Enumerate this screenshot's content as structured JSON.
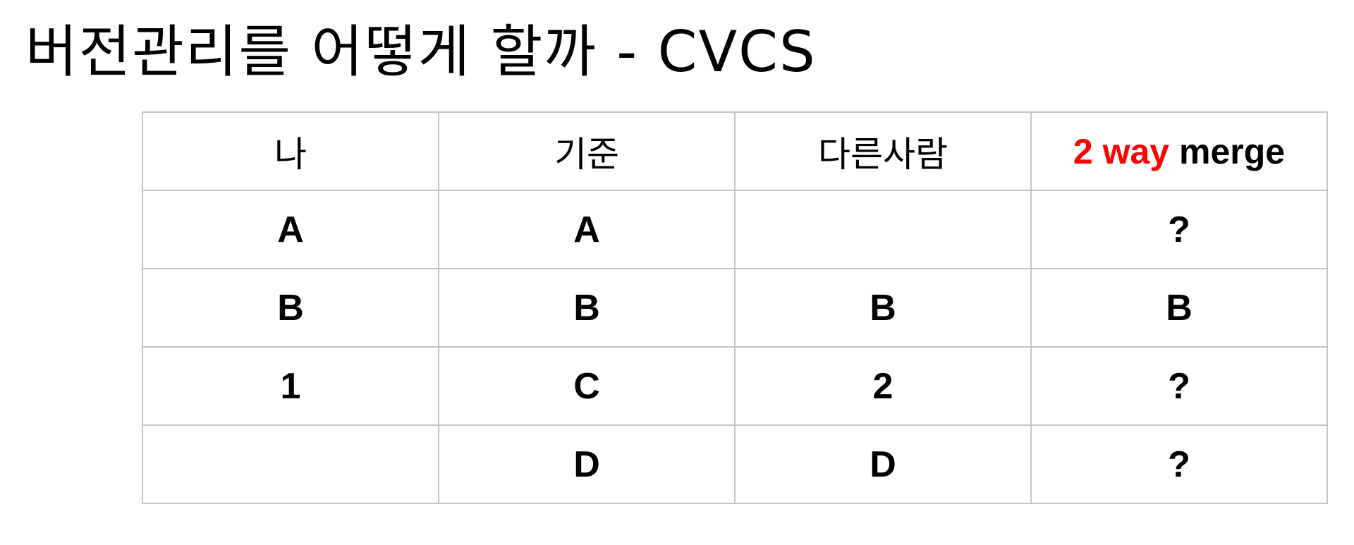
{
  "title": "버전관리를 어떻게 할까 - CVCS",
  "colors": {
    "accent": "#ff0000",
    "text": "#000000",
    "border": "#c4c4c4"
  },
  "table": {
    "headers": {
      "me": "나",
      "base": "기준",
      "other": "다른사람",
      "merge_accent": "2 way",
      "merge_rest": " merge"
    },
    "rows": [
      [
        "A",
        "A",
        "",
        "?"
      ],
      [
        "B",
        "B",
        "B",
        "B"
      ],
      [
        "1",
        "C",
        "2",
        "?"
      ],
      [
        "",
        "D",
        "D",
        "?"
      ]
    ]
  }
}
